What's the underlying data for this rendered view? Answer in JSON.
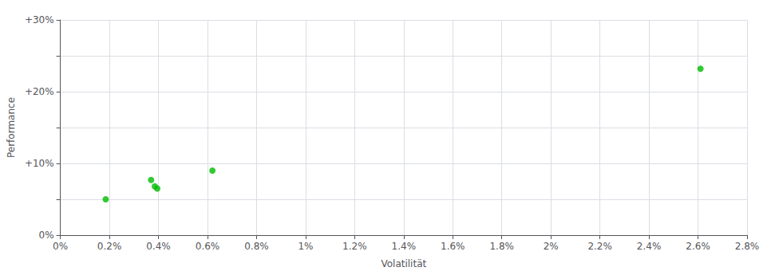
{
  "chart_data": {
    "type": "scatter",
    "xlabel": "Volatilität",
    "ylabel": "Performance",
    "x": [
      0.00185,
      0.0037,
      0.00385,
      0.00395,
      0.0062,
      0.0261
    ],
    "values": [
      0.05,
      0.077,
      0.068,
      0.065,
      0.09,
      0.232
    ],
    "color": "#00bb00",
    "xlim": [
      0.0,
      0.028
    ],
    "ylim": [
      0.0,
      0.3
    ],
    "xticks": [
      {
        "value": 0.0,
        "label": "0%"
      },
      {
        "value": 0.002,
        "label": "0.2%"
      },
      {
        "value": 0.004,
        "label": "0.4%"
      },
      {
        "value": 0.006,
        "label": "0.6%"
      },
      {
        "value": 0.008,
        "label": "0.8%"
      },
      {
        "value": 0.01,
        "label": "1%"
      },
      {
        "value": 0.012,
        "label": "1.2%"
      },
      {
        "value": 0.014,
        "label": "1.4%"
      },
      {
        "value": 0.016,
        "label": "1.6%"
      },
      {
        "value": 0.018,
        "label": "1.8%"
      },
      {
        "value": 0.02,
        "label": "2%"
      },
      {
        "value": 0.022,
        "label": "2.2%"
      },
      {
        "value": 0.024,
        "label": "2.4%"
      },
      {
        "value": 0.026,
        "label": "2.6%"
      },
      {
        "value": 0.028,
        "label": "2.8%"
      }
    ],
    "yticks": [
      {
        "value": 0.0,
        "label": "0%"
      },
      {
        "value": 0.05,
        "label": ""
      },
      {
        "value": 0.1,
        "label": "+10%"
      },
      {
        "value": 0.15,
        "label": ""
      },
      {
        "value": 0.2,
        "label": "+20%"
      },
      {
        "value": 0.25,
        "label": ""
      },
      {
        "value": 0.3,
        "label": "+30%"
      }
    ],
    "grid": true
  }
}
